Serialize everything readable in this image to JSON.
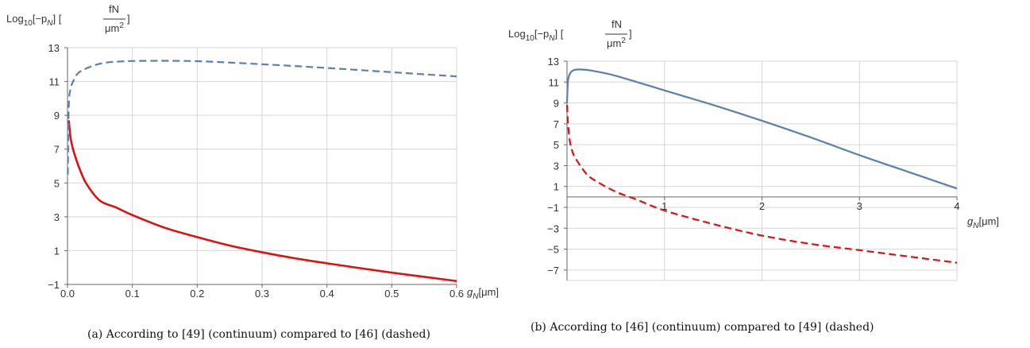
{
  "chart_data": [
    {
      "type": "line",
      "ylabel_prefix": "Log",
      "ylabel_sub": "10",
      "ylabel_mid": "[−p",
      "ylabel_mid_sub": "N",
      "ylabel_mid_end": "] [",
      "ylabel_frac_num": "fN",
      "ylabel_frac_den": "μm",
      "ylabel_frac_den_sup": "2",
      "ylabel_end": "]",
      "xlabel_var": "g",
      "xlabel_sub": "N",
      "xlabel_unit": "[μm]",
      "xlim": [
        0,
        0.6
      ],
      "ylim": [
        -1,
        13
      ],
      "x_ticks": [
        "0.0",
        "0.1",
        "0.2",
        "0.3",
        "0.4",
        "0.5",
        "0.6"
      ],
      "y_ticks": [
        "−1",
        "1",
        "3",
        "5",
        "7",
        "9",
        "11",
        "13"
      ],
      "grid": true,
      "caption": "(a) According to [49] (continuum) compared to [46] (dashed)",
      "series": [
        {
          "style": "solid",
          "color": "#dd1111",
          "x": [
            0.002,
            0.005,
            0.01,
            0.02,
            0.03,
            0.05,
            0.075,
            0.1,
            0.15,
            0.2,
            0.25,
            0.3,
            0.35,
            0.4,
            0.45,
            0.5,
            0.55,
            0.6
          ],
          "y": [
            8.7,
            7.6,
            6.8,
            5.7,
            4.9,
            3.95,
            3.55,
            3.1,
            2.35,
            1.8,
            1.3,
            0.9,
            0.55,
            0.25,
            -0.03,
            -0.3,
            -0.55,
            -0.8
          ]
        },
        {
          "style": "dashed",
          "color": "#5a7fb0",
          "x": [
            0.0005,
            0.002,
            0.005,
            0.01,
            0.02,
            0.05,
            0.08,
            0.12,
            0.2,
            0.3,
            0.4,
            0.5,
            0.6
          ],
          "y": [
            5.5,
            9.6,
            10.6,
            11.1,
            11.6,
            12.05,
            12.18,
            12.22,
            12.2,
            12.02,
            11.8,
            11.55,
            11.3
          ]
        }
      ]
    },
    {
      "type": "line",
      "ylabel_prefix": "Log",
      "ylabel_sub": "10",
      "ylabel_mid": "[−p",
      "ylabel_mid_sub": "N",
      "ylabel_mid_end": "] [",
      "ylabel_frac_num": "fN",
      "ylabel_frac_den": "μm",
      "ylabel_frac_den_sup": "2",
      "ylabel_end": "]",
      "xlabel_var": "g",
      "xlabel_sub": "N",
      "xlabel_unit": "[μm]",
      "xlim": [
        0,
        4
      ],
      "ylim": [
        -8,
        13
      ],
      "x_ticks": [
        "1",
        "2",
        "3",
        "4"
      ],
      "y_ticks": [
        "13",
        "11",
        "9",
        "7",
        "5",
        "3",
        "1",
        "−1",
        "−3",
        "−5",
        "−7"
      ],
      "grid": true,
      "caption": "(b) According to [46] (continuum) compared to [49] (dashed)",
      "series": [
        {
          "style": "solid",
          "color": "#5a7fb0",
          "x": [
            0.0,
            0.01,
            0.03,
            0.06,
            0.1,
            0.15,
            0.25,
            0.5,
            1.0,
            1.5,
            2.0,
            2.5,
            3.0,
            3.5,
            4.0
          ],
          "y": [
            9.0,
            11.1,
            11.8,
            12.1,
            12.2,
            12.2,
            12.1,
            11.6,
            10.2,
            8.8,
            7.3,
            5.7,
            4.0,
            2.4,
            0.8
          ]
        },
        {
          "style": "dashed",
          "color": "#dd1111",
          "x": [
            0.0,
            0.01,
            0.03,
            0.06,
            0.1,
            0.2,
            0.3,
            0.5,
            0.7,
            1.0,
            1.5,
            2.0,
            2.5,
            3.0,
            3.5,
            4.0
          ],
          "y": [
            8.8,
            7.0,
            5.3,
            4.2,
            3.5,
            2.2,
            1.5,
            0.5,
            -0.2,
            -1.3,
            -2.6,
            -3.7,
            -4.5,
            -5.1,
            -5.7,
            -6.3
          ]
        }
      ]
    }
  ]
}
